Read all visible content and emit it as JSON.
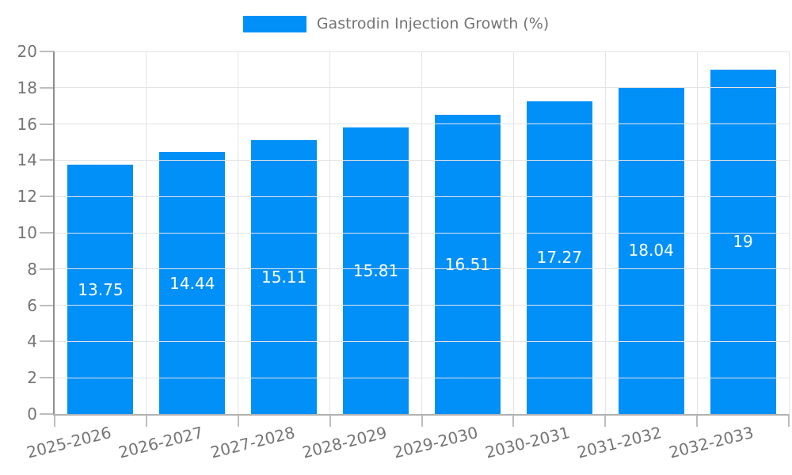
{
  "chart_data": {
    "type": "bar",
    "title": "",
    "legend": {
      "label": "Gastrodin Injection Growth (%)"
    },
    "legend_position": "top-center",
    "categories": [
      "2025-2026",
      "2026-2027",
      "2027-2028",
      "2028-2029",
      "2029-2030",
      "2030-2031",
      "2031-2032",
      "2032-2033"
    ],
    "series": [
      {
        "name": "Gastrodin Injection Growth (%)",
        "values": [
          13.75,
          14.44,
          15.11,
          15.81,
          16.51,
          17.27,
          18.04,
          19
        ],
        "value_labels": [
          "13.75",
          "14.44",
          "15.11",
          "15.81",
          "16.51",
          "17.27",
          "18.04",
          "19"
        ]
      }
    ],
    "xlabel": "",
    "ylabel": "",
    "ylim": [
      0,
      20
    ],
    "yticks": [
      0,
      2,
      4,
      6,
      8,
      10,
      12,
      14,
      16,
      18,
      20
    ],
    "grid": true,
    "colors": {
      "bar": "#0190f8",
      "grid": "#e4e4e4",
      "x_axis": "#b3b3b3",
      "y_axis": "#8f8f8f",
      "tick": "#bdbdbd",
      "tick_label": "#757575",
      "legend_label": "#737373",
      "bar_label": "#ffffff",
      "background": "#ffffff"
    }
  }
}
